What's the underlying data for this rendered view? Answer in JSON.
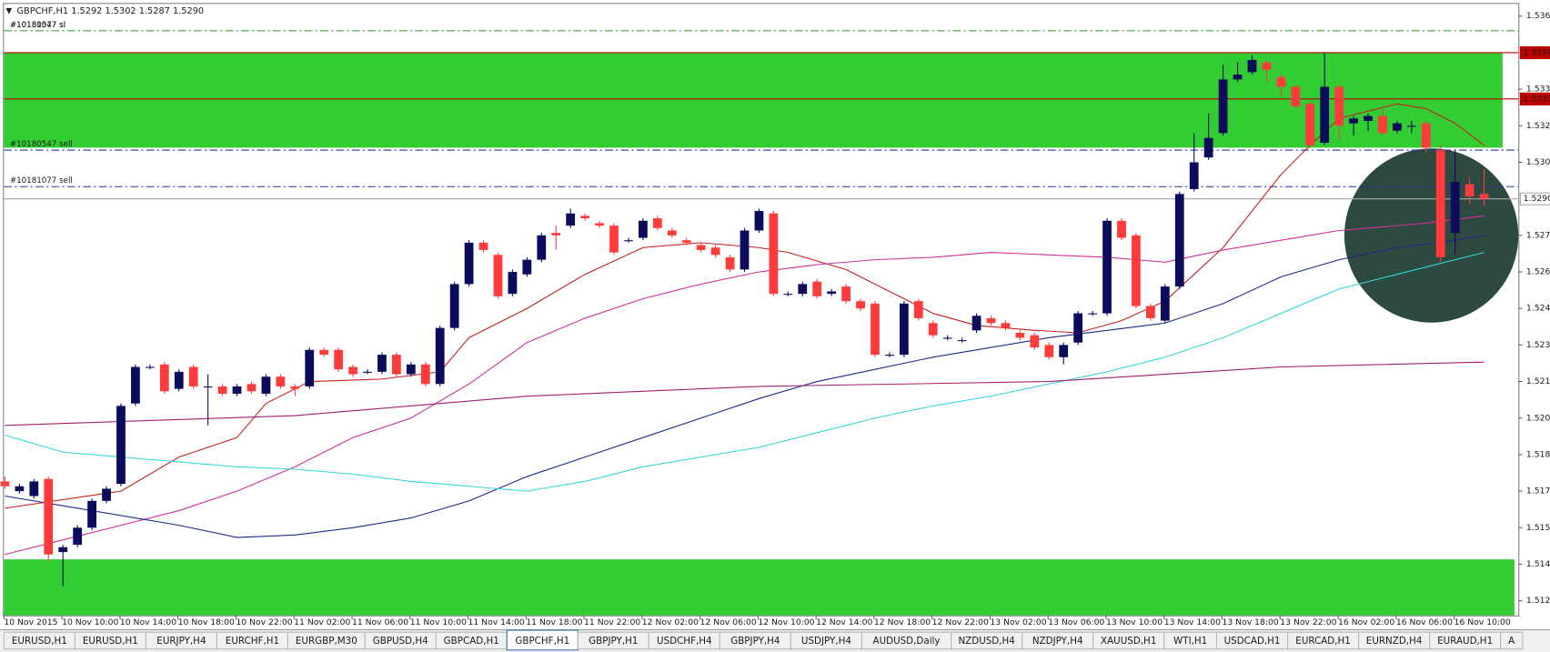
{
  "header": {
    "symbol": "GBPCHF,H1",
    "quote": "1.5292 1.5302 1.5287 1.5290"
  },
  "tabs": [
    "EURUSD,H1",
    "EURUSD,H1",
    "EURJPY,H4",
    "EURCHF,H1",
    "EURGBP,M30",
    "GBPUSD,H4",
    "GBPCAD,H1",
    "GBPCHF,H1",
    "GBPJPY,H1",
    "USDCHF,H4",
    "GBPJPY,H4",
    "USDJPY,H4",
    "AUDUSD,Daily",
    "NZDUSD,H4",
    "NZDJPY,H4",
    "XAUUSD,H1",
    "WTI,H1",
    "USDCAD,H1",
    "EURCAD,H1",
    "EURNZD,H4",
    "EURAUD,H1",
    "A"
  ],
  "active_tab": 7,
  "chart_data": {
    "type": "candlestick",
    "bull_color": "#0b0b5c",
    "bear_color": "#ff3b3b",
    "categories": [
      "10 Nov 2015",
      null,
      null,
      null,
      "10 Nov 10:00",
      null,
      null,
      null,
      "10 Nov 14:00",
      null,
      null,
      null,
      "10 Nov 18:00",
      null,
      null,
      null,
      "10 Nov 22:00",
      null,
      null,
      null,
      "11 Nov 02:00",
      null,
      null,
      null,
      "11 Nov 06:00",
      null,
      null,
      null,
      "11 Nov 10:00",
      null,
      null,
      null,
      "11 Nov 14:00",
      null,
      null,
      null,
      "11 Nov 18:00",
      null,
      null,
      null,
      "11 Nov 22:00",
      null,
      null,
      null,
      "12 Nov 02:00",
      null,
      null,
      null,
      "12 Nov 06:00",
      null,
      null,
      null,
      "12 Nov 10:00",
      null,
      null,
      null,
      "12 Nov 14:00",
      null,
      null,
      null,
      "12 Nov 18:00",
      null,
      null,
      null,
      "12 Nov 22:00",
      null,
      null,
      null,
      "13 Nov 02:00",
      null,
      null,
      null,
      "13 Nov 06:00",
      null,
      null,
      null,
      "13 Nov 10:00",
      null,
      null,
      null,
      "13 Nov 14:00",
      null,
      null,
      null,
      "13 Nov 18:00",
      null,
      null,
      null,
      "13 Nov 22:00",
      null,
      null,
      null,
      "16 Nov 02:00",
      null,
      null,
      null,
      "16 Nov 06:00",
      null,
      null,
      null,
      "16 Nov 10:00",
      null,
      null
    ],
    "open": [
      1.5174,
      1.517,
      1.5168,
      1.5175,
      1.5145,
      1.5148,
      1.5155,
      1.5166,
      1.5173,
      1.5206,
      1.5221,
      1.5222,
      1.5212,
      1.5221,
      1.5213,
      1.5213,
      1.521,
      1.5214,
      1.521,
      1.5217,
      1.5213,
      1.5213,
      1.5228,
      1.5228,
      1.5221,
      1.5219,
      1.5219,
      1.5226,
      1.5218,
      1.5222,
      1.5214,
      1.5237,
      1.5255,
      1.5272,
      1.5267,
      1.5251,
      1.5259,
      1.5265,
      1.5276,
      1.5279,
      1.5283,
      1.528,
      1.5279,
      1.5273,
      1.5274,
      1.5282,
      1.5277,
      1.5273,
      1.5271,
      1.527,
      1.5266,
      1.5261,
      1.5277,
      1.5284,
      1.5251,
      1.5251,
      1.5256,
      1.5251,
      1.5254,
      1.5248,
      1.5247,
      1.5226,
      1.5226,
      1.5248,
      1.5239,
      1.5233,
      1.5232,
      1.5236,
      1.5241,
      1.5239,
      1.5235,
      1.5234,
      1.523,
      1.5225,
      1.5231,
      1.5243,
      1.5243,
      1.5281,
      1.5275,
      1.5246,
      1.524,
      1.5254,
      1.5294,
      1.5307,
      1.5317,
      1.5339,
      1.5342,
      1.5346,
      1.534,
      1.5336,
      1.5329,
      1.5313,
      1.5336,
      1.5321,
      1.5322,
      1.5324,
      1.5318,
      1.532,
      1.5321,
      1.531,
      1.5276,
      1.5296,
      1.5292
    ],
    "high": [
      1.5176,
      1.5173,
      1.5175,
      1.5176,
      1.5148,
      1.5156,
      1.5167,
      1.5172,
      1.5206,
      1.5222,
      1.5222,
      1.5223,
      1.522,
      1.5222,
      1.5218,
      1.5214,
      1.5214,
      1.5215,
      1.5218,
      1.5218,
      1.5214,
      1.5229,
      1.5229,
      1.5229,
      1.5222,
      1.522,
      1.5227,
      1.5227,
      1.5223,
      1.5223,
      1.5238,
      1.5256,
      1.5273,
      1.5273,
      1.5268,
      1.5261,
      1.5266,
      1.5276,
      1.5279,
      1.5286,
      1.5284,
      1.5281,
      1.528,
      1.5274,
      1.5282,
      1.5283,
      1.5278,
      1.5274,
      1.5272,
      1.5271,
      1.5267,
      1.5278,
      1.5286,
      1.5285,
      1.5252,
      1.5256,
      1.5257,
      1.5253,
      1.5255,
      1.5249,
      1.5248,
      1.5227,
      1.5248,
      1.5249,
      1.524,
      1.5234,
      1.5233,
      1.5243,
      1.5242,
      1.524,
      1.5236,
      1.5235,
      1.5231,
      1.5231,
      1.5244,
      1.5244,
      1.5282,
      1.5282,
      1.5276,
      1.5247,
      1.5255,
      1.5293,
      1.5317,
      1.5325,
      1.5345,
      1.5346,
      1.5349,
      1.5347,
      1.5341,
      1.5337,
      1.533,
      1.535,
      1.5337,
      1.5324,
      1.5325,
      1.5327,
      1.5322,
      1.5322,
      1.5322,
      1.5312,
      1.531,
      1.5299,
      1.5302
    ],
    "low": [
      1.5171,
      1.5169,
      1.5167,
      1.5141,
      1.5131,
      1.5147,
      1.5154,
      1.5165,
      1.5172,
      1.5205,
      1.522,
      1.521,
      1.5211,
      1.5212,
      1.5197,
      1.5209,
      1.5209,
      1.521,
      1.5209,
      1.5212,
      1.5209,
      1.5212,
      1.5225,
      1.5219,
      1.5217,
      1.5218,
      1.5218,
      1.5217,
      1.5217,
      1.5213,
      1.5213,
      1.5236,
      1.5254,
      1.5268,
      1.5249,
      1.525,
      1.5258,
      1.5264,
      1.5269,
      1.5278,
      1.5281,
      1.5278,
      1.5267,
      1.5272,
      1.5273,
      1.5277,
      1.5274,
      1.5271,
      1.5268,
      1.5266,
      1.526,
      1.526,
      1.5276,
      1.525,
      1.525,
      1.525,
      1.5249,
      1.525,
      1.5247,
      1.5244,
      1.5225,
      1.5225,
      1.5225,
      1.524,
      1.5233,
      1.5232,
      1.5231,
      1.5235,
      1.5238,
      1.5236,
      1.5232,
      1.5228,
      1.5224,
      1.5222,
      1.523,
      1.5242,
      1.5242,
      1.5273,
      1.5245,
      1.524,
      1.5239,
      1.5253,
      1.5293,
      1.5306,
      1.5316,
      1.5338,
      1.5341,
      1.5338,
      1.5332,
      1.5327,
      1.5311,
      1.5312,
      1.5314,
      1.5316,
      1.5318,
      1.5316,
      1.5317,
      1.5317,
      1.5309,
      1.5264,
      1.5267,
      1.5288,
      1.5287
    ],
    "close": [
      1.5172,
      1.5172,
      1.5174,
      1.5144,
      1.5147,
      1.5155,
      1.5166,
      1.5171,
      1.5205,
      1.5221,
      1.5221,
      1.5211,
      1.5219,
      1.5213,
      1.5213,
      1.521,
      1.5213,
      1.5211,
      1.5217,
      1.5213,
      1.5212,
      1.5228,
      1.5226,
      1.522,
      1.5218,
      1.5219,
      1.5226,
      1.5218,
      1.5222,
      1.5214,
      1.5237,
      1.5255,
      1.5272,
      1.5269,
      1.525,
      1.526,
      1.5265,
      1.5275,
      1.5275,
      1.5284,
      1.5282,
      1.5279,
      1.5268,
      1.5273,
      1.5281,
      1.5278,
      1.5275,
      1.5272,
      1.5269,
      1.5267,
      1.5261,
      1.5277,
      1.5285,
      1.5251,
      1.5251,
      1.5255,
      1.525,
      1.5252,
      1.5248,
      1.5245,
      1.5226,
      1.5226,
      1.5247,
      1.5241,
      1.5234,
      1.5233,
      1.5232,
      1.5242,
      1.5239,
      1.5237,
      1.5233,
      1.5229,
      1.5225,
      1.523,
      1.5243,
      1.5243,
      1.5281,
      1.5274,
      1.5246,
      1.5241,
      1.5254,
      1.5292,
      1.5305,
      1.5315,
      1.5339,
      1.5341,
      1.5347,
      1.5343,
      1.5336,
      1.5328,
      1.5312,
      1.5336,
      1.532,
      1.5323,
      1.5324,
      1.5317,
      1.5321,
      1.532,
      1.5311,
      1.5266,
      1.5297,
      1.5291,
      1.529
    ],
    "indicators": [
      {
        "color": "#c62020",
        "x": [
          0,
          8,
          12,
          16,
          18,
          21,
          26,
          30,
          32,
          36,
          40,
          44,
          48,
          52,
          54,
          58,
          61,
          64,
          67,
          71,
          74,
          77,
          80,
          82,
          84,
          88,
          90,
          92,
          94,
          96,
          98,
          100,
          102
        ],
        "values": [
          1.5163,
          1.517,
          1.5184,
          1.5192,
          1.5206,
          1.5215,
          1.5216,
          1.5219,
          1.5233,
          1.5245,
          1.5259,
          1.527,
          1.5272,
          1.527,
          1.5268,
          1.5261,
          1.5252,
          1.5243,
          1.5238,
          1.5236,
          1.5235,
          1.524,
          1.5248,
          1.5259,
          1.527,
          1.53,
          1.5312,
          1.5323,
          1.5326,
          1.5329,
          1.5327,
          1.5321,
          1.5312
        ]
      },
      {
        "color": "#d0309a",
        "x": [
          0,
          4,
          8,
          12,
          16,
          20,
          24,
          28,
          32,
          36,
          40,
          44,
          48,
          52,
          56,
          60,
          64,
          68,
          72,
          76,
          80,
          84,
          88,
          92,
          96,
          98,
          102
        ],
        "values": [
          1.5144,
          1.515,
          1.5156,
          1.5162,
          1.517,
          1.518,
          1.5192,
          1.52,
          1.5214,
          1.5231,
          1.5241,
          1.5249,
          1.5255,
          1.526,
          1.5263,
          1.5265,
          1.5266,
          1.5268,
          1.5267,
          1.5266,
          1.5264,
          1.5269,
          1.5273,
          1.5277,
          1.5279,
          1.528,
          1.5283
        ]
      },
      {
        "color": "#1c2a8c",
        "x": [
          0,
          4,
          8,
          12,
          16,
          20,
          24,
          28,
          32,
          36,
          40,
          44,
          48,
          52,
          56,
          60,
          64,
          68,
          72,
          76,
          80,
          84,
          88,
          92,
          96,
          100,
          102
        ],
        "values": [
          1.5168,
          1.5164,
          1.516,
          1.5156,
          1.5151,
          1.5152,
          1.5155,
          1.5159,
          1.5166,
          1.5176,
          1.5184,
          1.5192,
          1.52,
          1.5208,
          1.5215,
          1.522,
          1.5225,
          1.5229,
          1.5233,
          1.5236,
          1.5239,
          1.5247,
          1.5258,
          1.5265,
          1.527,
          1.5273,
          1.5275
        ]
      },
      {
        "color": "#36d6d6",
        "x": [
          0,
          4,
          8,
          12,
          16,
          20,
          24,
          28,
          32,
          36,
          40,
          44,
          48,
          52,
          56,
          60,
          64,
          68,
          72,
          76,
          80,
          84,
          88,
          92,
          96,
          100,
          102
        ],
        "values": [
          1.5193,
          1.5186,
          1.5184,
          1.5182,
          1.518,
          1.5179,
          1.5177,
          1.5174,
          1.5172,
          1.517,
          1.5174,
          1.518,
          1.5184,
          1.5188,
          1.5194,
          1.52,
          1.5205,
          1.5209,
          1.5214,
          1.5219,
          1.5225,
          1.5233,
          1.5243,
          1.5253,
          1.5259,
          1.5265,
          1.5268
        ]
      },
      {
        "color": "#a0206e",
        "x": [
          0,
          20,
          36,
          52,
          72,
          88,
          102
        ],
        "values": [
          1.5197,
          1.5201,
          1.5209,
          1.5213,
          1.5215,
          1.5221,
          1.5223
        ]
      }
    ],
    "zones": [
      {
        "from": 1.5311,
        "to": 1.535,
        "color": "#32cd32"
      },
      {
        "from": 1.5119,
        "to": 1.5142,
        "color": "#32cd32"
      }
    ],
    "levels": [
      {
        "value": 1.5359,
        "name": "#10180547 sl",
        "color": "#5cb85c",
        "style": "dashdot"
      },
      {
        "value": 1.5359,
        "name": "#10181077 sl",
        "color": "#5cb85c",
        "style": "dashdot"
      },
      {
        "value": 1.535,
        "label": "1.5350",
        "color": "#c00000",
        "style": "solid"
      },
      {
        "value": 1.5331,
        "label": "1.5331",
        "color": "#c00000",
        "style": "solid"
      },
      {
        "value": 1.531,
        "name": "#10180547 sell",
        "color": "#1f3a93",
        "style": "dashdot"
      },
      {
        "value": 1.5295,
        "name": "#10181077 sell",
        "color": "#1f3a93",
        "style": "dashdot"
      },
      {
        "value": 1.529,
        "label": "1.5290",
        "color": "#a8a8a8",
        "style": "solid"
      }
    ],
    "ylim": [
      1.5119,
      1.537
    ],
    "yticks": [
      1.5125,
      {
        "value": 1.514,
        "label": "1.5140"
      },
      1.5155,
      {
        "value": 1.517,
        "label": "1.5170"
      },
      1.5185,
      {
        "value": 1.52,
        "label": "1.5200"
      },
      1.5215,
      {
        "value": 1.523,
        "label": "1.5230"
      },
      1.5245,
      {
        "value": 1.526,
        "label": "1.5260"
      },
      1.5275,
      1.5305,
      {
        "value": 1.532,
        "label": "1.5320"
      },
      1.5335,
      1.5365
    ]
  }
}
